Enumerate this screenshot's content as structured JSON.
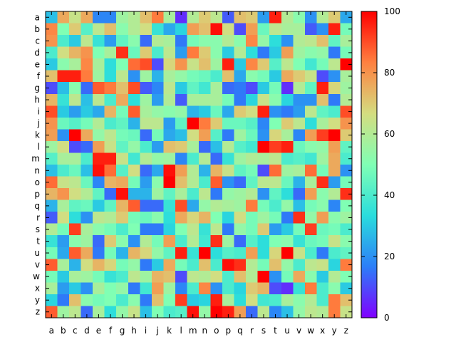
{
  "chart_data": {
    "type": "heatmap",
    "title": "",
    "xlabel": "",
    "ylabel": "",
    "x_categories": [
      "a",
      "b",
      "c",
      "d",
      "e",
      "f",
      "g",
      "h",
      "i",
      "j",
      "k",
      "l",
      "m",
      "n",
      "o",
      "p",
      "q",
      "r",
      "s",
      "t",
      "u",
      "v",
      "w",
      "x",
      "y",
      "z"
    ],
    "y_categories": [
      "a",
      "b",
      "c",
      "d",
      "e",
      "f",
      "g",
      "h",
      "i",
      "j",
      "k",
      "l",
      "m",
      "n",
      "o",
      "p",
      "q",
      "r",
      "s",
      "t",
      "u",
      "v",
      "w",
      "x",
      "y",
      "z"
    ],
    "value_range": [
      0,
      100
    ],
    "colorbar": {
      "ticks": [
        0,
        20,
        40,
        60,
        80,
        100
      ],
      "tick_labels": [
        "0",
        "20",
        "40",
        "60",
        "80",
        "100"
      ]
    },
    "colormap": "rainbow",
    "colormap_stops": [
      "#8000ff",
      "#2c7ef8",
      "#2adddd",
      "#80ffb4",
      "#d4dd80",
      "#ff8040",
      "#ff0000"
    ],
    "grid": false,
    "values": [
      [
        28,
        76,
        64,
        76,
        18,
        18,
        56,
        60,
        72,
        84,
        58,
        6,
        60,
        70,
        62,
        12,
        72,
        70,
        22,
        96,
        60,
        52,
        20,
        60,
        70,
        24
      ],
      [
        82,
        50,
        70,
        42,
        62,
        72,
        52,
        60,
        66,
        36,
        24,
        32,
        78,
        72,
        98,
        66,
        10,
        78,
        46,
        62,
        58,
        58,
        12,
        20,
        96,
        48
      ],
      [
        80,
        40,
        30,
        62,
        36,
        22,
        44,
        52,
        14,
        60,
        58,
        16,
        48,
        52,
        52,
        60,
        52,
        82,
        54,
        34,
        20,
        60,
        62,
        72,
        44,
        58
      ],
      [
        40,
        66,
        74,
        80,
        50,
        58,
        94,
        46,
        70,
        40,
        62,
        22,
        84,
        70,
        52,
        30,
        60,
        34,
        16,
        30,
        78,
        56,
        52,
        54,
        16,
        48
      ],
      [
        30,
        52,
        58,
        82,
        58,
        34,
        50,
        86,
        90,
        10,
        68,
        80,
        64,
        72,
        56,
        96,
        30,
        82,
        70,
        42,
        62,
        50,
        38,
        48,
        62,
        100
      ],
      [
        72,
        96,
        96,
        84,
        56,
        34,
        62,
        20,
        56,
        26,
        58,
        54,
        48,
        46,
        40,
        72,
        24,
        52,
        48,
        30,
        76,
        70,
        64,
        10,
        20,
        58
      ],
      [
        10,
        28,
        52,
        14,
        88,
        84,
        72,
        90,
        12,
        18,
        62,
        30,
        44,
        38,
        58,
        14,
        16,
        10,
        30,
        48,
        6,
        60,
        44,
        96,
        68,
        56
      ],
      [
        74,
        36,
        62,
        28,
        62,
        40,
        76,
        34,
        56,
        22,
        60,
        12,
        58,
        58,
        58,
        48,
        16,
        32,
        64,
        52,
        32,
        20,
        20,
        72,
        16,
        60
      ],
      [
        90,
        30,
        22,
        30,
        24,
        74,
        48,
        88,
        58,
        54,
        52,
        54,
        26,
        30,
        46,
        24,
        70,
        66,
        96,
        20,
        16,
        22,
        62,
        44,
        40,
        90
      ],
      [
        80,
        46,
        42,
        48,
        60,
        40,
        44,
        26,
        62,
        62,
        22,
        44,
        100,
        84,
        70,
        46,
        46,
        42,
        18,
        50,
        70,
        62,
        34,
        58,
        66,
        80
      ],
      [
        78,
        20,
        100,
        76,
        54,
        62,
        48,
        46,
        14,
        48,
        24,
        28,
        66,
        78,
        42,
        16,
        56,
        46,
        20,
        68,
        58,
        18,
        78,
        92,
        100,
        70
      ],
      [
        56,
        66,
        10,
        14,
        78,
        64,
        44,
        54,
        40,
        22,
        72,
        70,
        58,
        14,
        28,
        60,
        42,
        38,
        100,
        92,
        96,
        46,
        52,
        54,
        78,
        44
      ],
      [
        42,
        58,
        58,
        40,
        96,
        96,
        64,
        38,
        60,
        54,
        56,
        18,
        40,
        60,
        14,
        36,
        56,
        60,
        58,
        62,
        40,
        42,
        38,
        56,
        76,
        40
      ],
      [
        28,
        40,
        46,
        28,
        98,
        86,
        42,
        66,
        14,
        24,
        98,
        78,
        60,
        26,
        74,
        64,
        44,
        48,
        10,
        86,
        56,
        58,
        86,
        48,
        76,
        20
      ],
      [
        86,
        64,
        62,
        46,
        18,
        74,
        76,
        48,
        22,
        52,
        100,
        72,
        60,
        40,
        88,
        20,
        14,
        44,
        62,
        62,
        46,
        26,
        58,
        94,
        22,
        48
      ],
      [
        74,
        80,
        66,
        60,
        44,
        14,
        98,
        26,
        26,
        56,
        44,
        58,
        40,
        62,
        16,
        54,
        56,
        60,
        20,
        44,
        34,
        14,
        78,
        52,
        60,
        94
      ],
      [
        26,
        58,
        44,
        46,
        30,
        44,
        74,
        88,
        14,
        14,
        36,
        90,
        24,
        54,
        60,
        58,
        56,
        84,
        48,
        40,
        54,
        28,
        48,
        52,
        18,
        50
      ],
      [
        12,
        66,
        34,
        20,
        62,
        60,
        70,
        48,
        46,
        52,
        34,
        76,
        68,
        74,
        50,
        32,
        66,
        48,
        56,
        48,
        16,
        94,
        54,
        78,
        52,
        56
      ],
      [
        60,
        48,
        92,
        58,
        52,
        48,
        40,
        50,
        16,
        16,
        32,
        50,
        62,
        36,
        62,
        16,
        54,
        48,
        70,
        22,
        30,
        48,
        92,
        46,
        48,
        40
      ],
      [
        36,
        22,
        52,
        56,
        14,
        70,
        52,
        20,
        60,
        48,
        78,
        40,
        60,
        38,
        94,
        56,
        14,
        42,
        34,
        50,
        52,
        36,
        46,
        48,
        64,
        52
      ],
      [
        48,
        24,
        88,
        76,
        16,
        48,
        26,
        74,
        68,
        54,
        44,
        96,
        36,
        100,
        34,
        42,
        40,
        78,
        34,
        68,
        100,
        64,
        40,
        16,
        40,
        44
      ],
      [
        88,
        58,
        26,
        66,
        74,
        68,
        48,
        54,
        16,
        30,
        76,
        48,
        40,
        72,
        40,
        98,
        94,
        60,
        48,
        72,
        54,
        40,
        62,
        64,
        32,
        84
      ],
      [
        48,
        30,
        58,
        56,
        48,
        36,
        40,
        62,
        56,
        74,
        72,
        10,
        62,
        60,
        66,
        40,
        72,
        60,
        100,
        20,
        48,
        76,
        52,
        30,
        60,
        50
      ],
      [
        58,
        22,
        30,
        20,
        58,
        50,
        54,
        16,
        38,
        78,
        56,
        18,
        40,
        82,
        20,
        40,
        32,
        70,
        74,
        10,
        6,
        36,
        84,
        40,
        52,
        30
      ],
      [
        32,
        16,
        72,
        52,
        48,
        50,
        40,
        52,
        16,
        72,
        50,
        92,
        30,
        32,
        96,
        58,
        34,
        66,
        38,
        40,
        58,
        52,
        60,
        40,
        84,
        72
      ],
      [
        88,
        56,
        62,
        14,
        58,
        34,
        54,
        64,
        28,
        50,
        40,
        42,
        98,
        54,
        100,
        96,
        78,
        14,
        62,
        18,
        28,
        54,
        62,
        60,
        84,
        64
      ]
    ]
  }
}
